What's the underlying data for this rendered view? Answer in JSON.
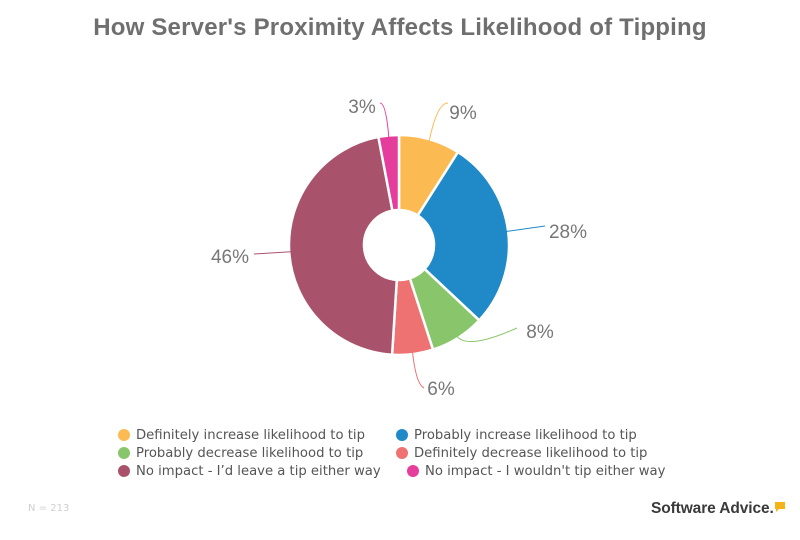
{
  "chart_data": {
    "type": "pie",
    "variant": "donut",
    "title": "How Server's Proximity Affects Likelihood of Tipping",
    "categories": [
      "Definitely increase likelihood to tip",
      "Probably increase likelihood to tip",
      "Probably decrease likelihood to tip",
      "Definitely decrease likelihood to tip",
      "No impact - I’d leave a tip either way",
      "No impact - I wouldn't tip either way"
    ],
    "values": [
      9,
      28,
      8,
      6,
      46,
      3
    ],
    "value_labels": [
      "9%",
      "28%",
      "8%",
      "6%",
      "46%",
      "3%"
    ],
    "colors": [
      "#fbbb52",
      "#2089c8",
      "#89c66b",
      "#ef7272",
      "#a9526c",
      "#e53d9c"
    ],
    "start_angle": "12 o'clock",
    "direction": "clockwise",
    "legend_position": "bottom",
    "units": "percent of respondents"
  },
  "footnote": "N = 213",
  "brand": "Software Advice."
}
